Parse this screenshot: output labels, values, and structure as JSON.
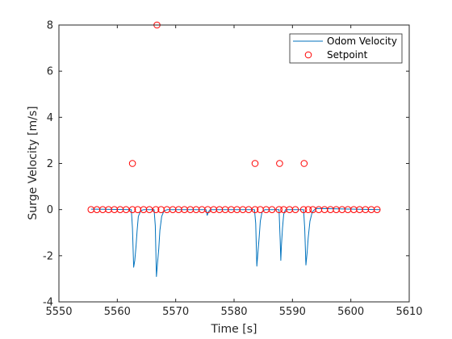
{
  "chart_data": {
    "type": "scatter",
    "title": "",
    "xlabel": "Time [s]",
    "ylabel": "Surge Velocity [m/s]",
    "xlim": [
      5550,
      5610
    ],
    "ylim": [
      -4,
      8
    ],
    "xticks": [
      5550,
      5560,
      5570,
      5580,
      5590,
      5600,
      5610
    ],
    "yticks": [
      -4,
      -2,
      0,
      2,
      4,
      6,
      8
    ],
    "grid": false,
    "legend_position": "top-right",
    "colors": {
      "odom": "#0072bd",
      "setpoint": "#ff0000",
      "axis": "#262626"
    },
    "series": [
      {
        "name": "Odom Velocity",
        "kind": "line",
        "x": [
          5555.5,
          5562.4,
          5562.6,
          5562.8,
          5563.0,
          5563.2,
          5563.4,
          5563.6,
          5564.0,
          5564.5,
          5566.3,
          5566.5,
          5566.7,
          5566.9,
          5567.1,
          5567.3,
          5567.6,
          5568.0,
          5568.6,
          5575.2,
          5575.4,
          5575.6,
          5575.9,
          5583.5,
          5583.7,
          5583.9,
          5584.1,
          5584.3,
          5584.5,
          5584.8,
          5585.3,
          5587.7,
          5587.9,
          5588.0,
          5588.1,
          5588.3,
          5588.5,
          5588.8,
          5591.9,
          5592.1,
          5592.3,
          5592.5,
          5592.7,
          5593.0,
          5593.4,
          5594.0,
          5605.0
        ],
        "y": [
          0.02,
          0.0,
          -0.8,
          -2.5,
          -2.2,
          -1.6,
          -0.9,
          -0.3,
          -0.05,
          0.0,
          0.0,
          -0.7,
          -2.9,
          -2.3,
          -1.7,
          -0.9,
          -0.3,
          -0.05,
          0.0,
          0.0,
          -0.25,
          -0.1,
          0.0,
          0.0,
          -0.6,
          -2.45,
          -1.8,
          -1.2,
          -0.5,
          -0.1,
          0.0,
          0.0,
          -1.3,
          -2.2,
          -1.6,
          -0.8,
          -0.2,
          0.0,
          0.0,
          -0.8,
          -2.4,
          -1.9,
          -1.2,
          -0.5,
          -0.1,
          0.05,
          0.0
        ]
      },
      {
        "name": "Setpoint",
        "kind": "scatter",
        "x": [
          5555.5,
          5556.5,
          5557.5,
          5558.5,
          5559.5,
          5560.5,
          5561.5,
          5562.6,
          5563.5,
          5564.5,
          5565.5,
          5566.6,
          5567.5,
          5568.5,
          5569.5,
          5570.5,
          5571.5,
          5572.5,
          5573.5,
          5574.5,
          5575.5,
          5576.5,
          5577.5,
          5578.5,
          5579.5,
          5580.5,
          5581.5,
          5582.5,
          5583.6,
          5584.5,
          5585.5,
          5586.5,
          5587.7,
          5588.5,
          5589.5,
          5590.5,
          5591.9,
          5592.7,
          5593.5,
          5594.5,
          5595.5,
          5596.5,
          5597.5,
          5598.5,
          5599.5,
          5600.5,
          5601.5,
          5602.5,
          5603.5,
          5604.5,
          5562.6,
          5566.8,
          5583.6,
          5587.8,
          5592.0
        ],
        "y": [
          0,
          0,
          0,
          0,
          0,
          0,
          0,
          0,
          0,
          0,
          0,
          0,
          0,
          0,
          0,
          0,
          0,
          0,
          0,
          0,
          0,
          0,
          0,
          0,
          0,
          0,
          0,
          0,
          0,
          0,
          0,
          0,
          0,
          0,
          0,
          0,
          0,
          0,
          0,
          0,
          0,
          0,
          0,
          0,
          0,
          0,
          0,
          0,
          0,
          0,
          2,
          8,
          2,
          2,
          2
        ]
      }
    ]
  }
}
